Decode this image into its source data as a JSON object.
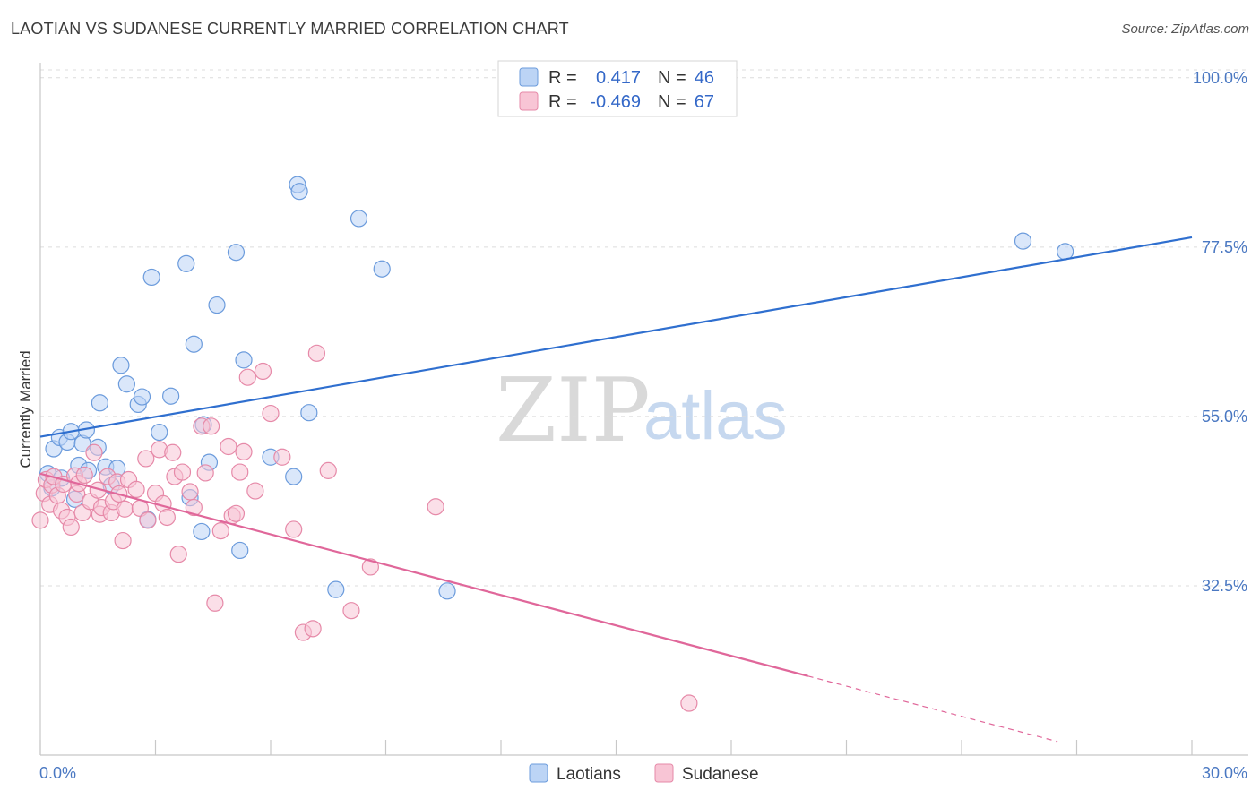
{
  "header": {
    "title": "LAOTIAN VS SUDANESE CURRENTLY MARRIED CORRELATION CHART",
    "source": "Source: ZipAtlas.com"
  },
  "watermark": {
    "zip": "ZIP",
    "atlas": "atlas"
  },
  "legend": {
    "r_label": "R =",
    "n_label": "N =",
    "rows": [
      {
        "r": "0.417",
        "n": "46",
        "fill": "#bcd4f5",
        "stroke": "#6b9bdc"
      },
      {
        "r": "-0.469",
        "n": "67",
        "fill": "#f8c5d5",
        "stroke": "#e689a8"
      }
    ]
  },
  "bottom_legend": [
    {
      "label": "Laotians",
      "fill": "#bcd4f5",
      "stroke": "#6b9bdc"
    },
    {
      "label": "Sudanese",
      "fill": "#f8c5d5",
      "stroke": "#e689a8"
    }
  ],
  "chart_data": {
    "type": "scatter",
    "title": "LAOTIAN VS SUDANESE CURRENTLY MARRIED CORRELATION CHART",
    "xlabel": "",
    "ylabel": "Currently Married",
    "xlim": [
      0,
      30
    ],
    "ylim": [
      10,
      102
    ],
    "x_tick_labels": [
      "0.0%",
      "30.0%"
    ],
    "y_ticks": [
      32.5,
      55.0,
      77.5,
      100.0
    ],
    "y_tick_labels": [
      "32.5%",
      "55.0%",
      "77.5%",
      "100.0%"
    ],
    "grid": true,
    "series": [
      {
        "name": "Laotians",
        "color": "#6b9bdc",
        "fill": "#bcd4f5",
        "trend": {
          "x": [
            0,
            30
          ],
          "y": [
            52.3,
            78.8
          ]
        },
        "points": [
          {
            "x": 0.2,
            "y": 47.4
          },
          {
            "x": 0.35,
            "y": 50.7
          },
          {
            "x": 0.5,
            "y": 52.2
          },
          {
            "x": 0.55,
            "y": 46.8
          },
          {
            "x": 0.7,
            "y": 51.6
          },
          {
            "x": 0.8,
            "y": 53.0
          },
          {
            "x": 0.9,
            "y": 44.0
          },
          {
            "x": 1.0,
            "y": 48.5
          },
          {
            "x": 1.1,
            "y": 51.4
          },
          {
            "x": 1.2,
            "y": 53.2
          },
          {
            "x": 1.25,
            "y": 47.8
          },
          {
            "x": 1.5,
            "y": 50.9
          },
          {
            "x": 1.55,
            "y": 56.8
          },
          {
            "x": 1.7,
            "y": 48.3
          },
          {
            "x": 1.85,
            "y": 45.8
          },
          {
            "x": 2.0,
            "y": 48.1
          },
          {
            "x": 2.1,
            "y": 61.8
          },
          {
            "x": 2.25,
            "y": 59.3
          },
          {
            "x": 2.55,
            "y": 56.6
          },
          {
            "x": 2.65,
            "y": 57.6
          },
          {
            "x": 2.8,
            "y": 41.3
          },
          {
            "x": 2.9,
            "y": 73.5
          },
          {
            "x": 3.1,
            "y": 52.9
          },
          {
            "x": 3.4,
            "y": 57.7
          },
          {
            "x": 3.8,
            "y": 75.3
          },
          {
            "x": 3.9,
            "y": 44.2
          },
          {
            "x": 4.0,
            "y": 64.6
          },
          {
            "x": 4.2,
            "y": 39.7
          },
          {
            "x": 4.25,
            "y": 53.9
          },
          {
            "x": 4.4,
            "y": 48.9
          },
          {
            "x": 4.6,
            "y": 69.8
          },
          {
            "x": 5.1,
            "y": 76.8
          },
          {
            "x": 5.2,
            "y": 37.2
          },
          {
            "x": 5.3,
            "y": 62.5
          },
          {
            "x": 6.0,
            "y": 49.6
          },
          {
            "x": 6.6,
            "y": 47.0
          },
          {
            "x": 6.7,
            "y": 85.8
          },
          {
            "x": 6.75,
            "y": 84.9
          },
          {
            "x": 7.0,
            "y": 55.5
          },
          {
            "x": 7.7,
            "y": 32.0
          },
          {
            "x": 8.3,
            "y": 81.3
          },
          {
            "x": 8.9,
            "y": 74.6
          },
          {
            "x": 10.6,
            "y": 31.8
          },
          {
            "x": 0.3,
            "y": 45.5
          },
          {
            "x": 25.6,
            "y": 78.3
          },
          {
            "x": 26.7,
            "y": 76.9
          }
        ]
      },
      {
        "name": "Sudanese",
        "color": "#e689a8",
        "fill": "#f8c5d5",
        "trend": {
          "x": [
            0,
            20
          ],
          "y": [
            47.4,
            20.5
          ]
        },
        "trend_dashed": {
          "x": [
            20,
            26.5
          ],
          "y": [
            20.5,
            11.8
          ]
        },
        "points": [
          {
            "x": 0.0,
            "y": 41.2
          },
          {
            "x": 0.1,
            "y": 44.8
          },
          {
            "x": 0.15,
            "y": 46.6
          },
          {
            "x": 0.25,
            "y": 43.3
          },
          {
            "x": 0.3,
            "y": 45.9
          },
          {
            "x": 0.35,
            "y": 47.0
          },
          {
            "x": 0.45,
            "y": 44.5
          },
          {
            "x": 0.55,
            "y": 42.5
          },
          {
            "x": 0.6,
            "y": 46.0
          },
          {
            "x": 0.7,
            "y": 41.6
          },
          {
            "x": 0.8,
            "y": 40.3
          },
          {
            "x": 0.9,
            "y": 47.1
          },
          {
            "x": 0.95,
            "y": 44.7
          },
          {
            "x": 1.0,
            "y": 46.1
          },
          {
            "x": 1.1,
            "y": 42.2
          },
          {
            "x": 1.15,
            "y": 47.2
          },
          {
            "x": 1.3,
            "y": 43.7
          },
          {
            "x": 1.4,
            "y": 50.2
          },
          {
            "x": 1.5,
            "y": 45.2
          },
          {
            "x": 1.55,
            "y": 42.0
          },
          {
            "x": 1.6,
            "y": 42.9
          },
          {
            "x": 1.75,
            "y": 47.0
          },
          {
            "x": 1.85,
            "y": 42.2
          },
          {
            "x": 1.9,
            "y": 43.7
          },
          {
            "x": 2.0,
            "y": 46.3
          },
          {
            "x": 2.05,
            "y": 44.7
          },
          {
            "x": 2.15,
            "y": 38.5
          },
          {
            "x": 2.2,
            "y": 42.7
          },
          {
            "x": 2.3,
            "y": 46.6
          },
          {
            "x": 2.5,
            "y": 45.3
          },
          {
            "x": 2.6,
            "y": 42.8
          },
          {
            "x": 2.75,
            "y": 49.4
          },
          {
            "x": 2.8,
            "y": 41.2
          },
          {
            "x": 3.0,
            "y": 44.8
          },
          {
            "x": 3.1,
            "y": 50.6
          },
          {
            "x": 3.2,
            "y": 43.4
          },
          {
            "x": 3.3,
            "y": 41.6
          },
          {
            "x": 3.45,
            "y": 50.2
          },
          {
            "x": 3.5,
            "y": 47.0
          },
          {
            "x": 3.6,
            "y": 36.7
          },
          {
            "x": 3.7,
            "y": 47.6
          },
          {
            "x": 3.9,
            "y": 45.0
          },
          {
            "x": 4.0,
            "y": 42.9
          },
          {
            "x": 4.2,
            "y": 53.7
          },
          {
            "x": 4.3,
            "y": 47.5
          },
          {
            "x": 4.45,
            "y": 53.7
          },
          {
            "x": 4.55,
            "y": 30.2
          },
          {
            "x": 4.7,
            "y": 39.8
          },
          {
            "x": 4.9,
            "y": 51.0
          },
          {
            "x": 5.0,
            "y": 41.8
          },
          {
            "x": 5.2,
            "y": 47.6
          },
          {
            "x": 5.3,
            "y": 50.3
          },
          {
            "x": 5.4,
            "y": 60.2
          },
          {
            "x": 5.6,
            "y": 45.1
          },
          {
            "x": 5.8,
            "y": 61.0
          },
          {
            "x": 6.0,
            "y": 55.4
          },
          {
            "x": 6.3,
            "y": 49.6
          },
          {
            "x": 6.6,
            "y": 40.0
          },
          {
            "x": 6.85,
            "y": 26.3
          },
          {
            "x": 7.1,
            "y": 26.8
          },
          {
            "x": 7.2,
            "y": 63.4
          },
          {
            "x": 7.5,
            "y": 47.8
          },
          {
            "x": 8.1,
            "y": 29.2
          },
          {
            "x": 8.6,
            "y": 35.0
          },
          {
            "x": 10.3,
            "y": 43.0
          },
          {
            "x": 16.9,
            "y": 16.9
          },
          {
            "x": 5.1,
            "y": 42.1
          }
        ]
      }
    ]
  }
}
